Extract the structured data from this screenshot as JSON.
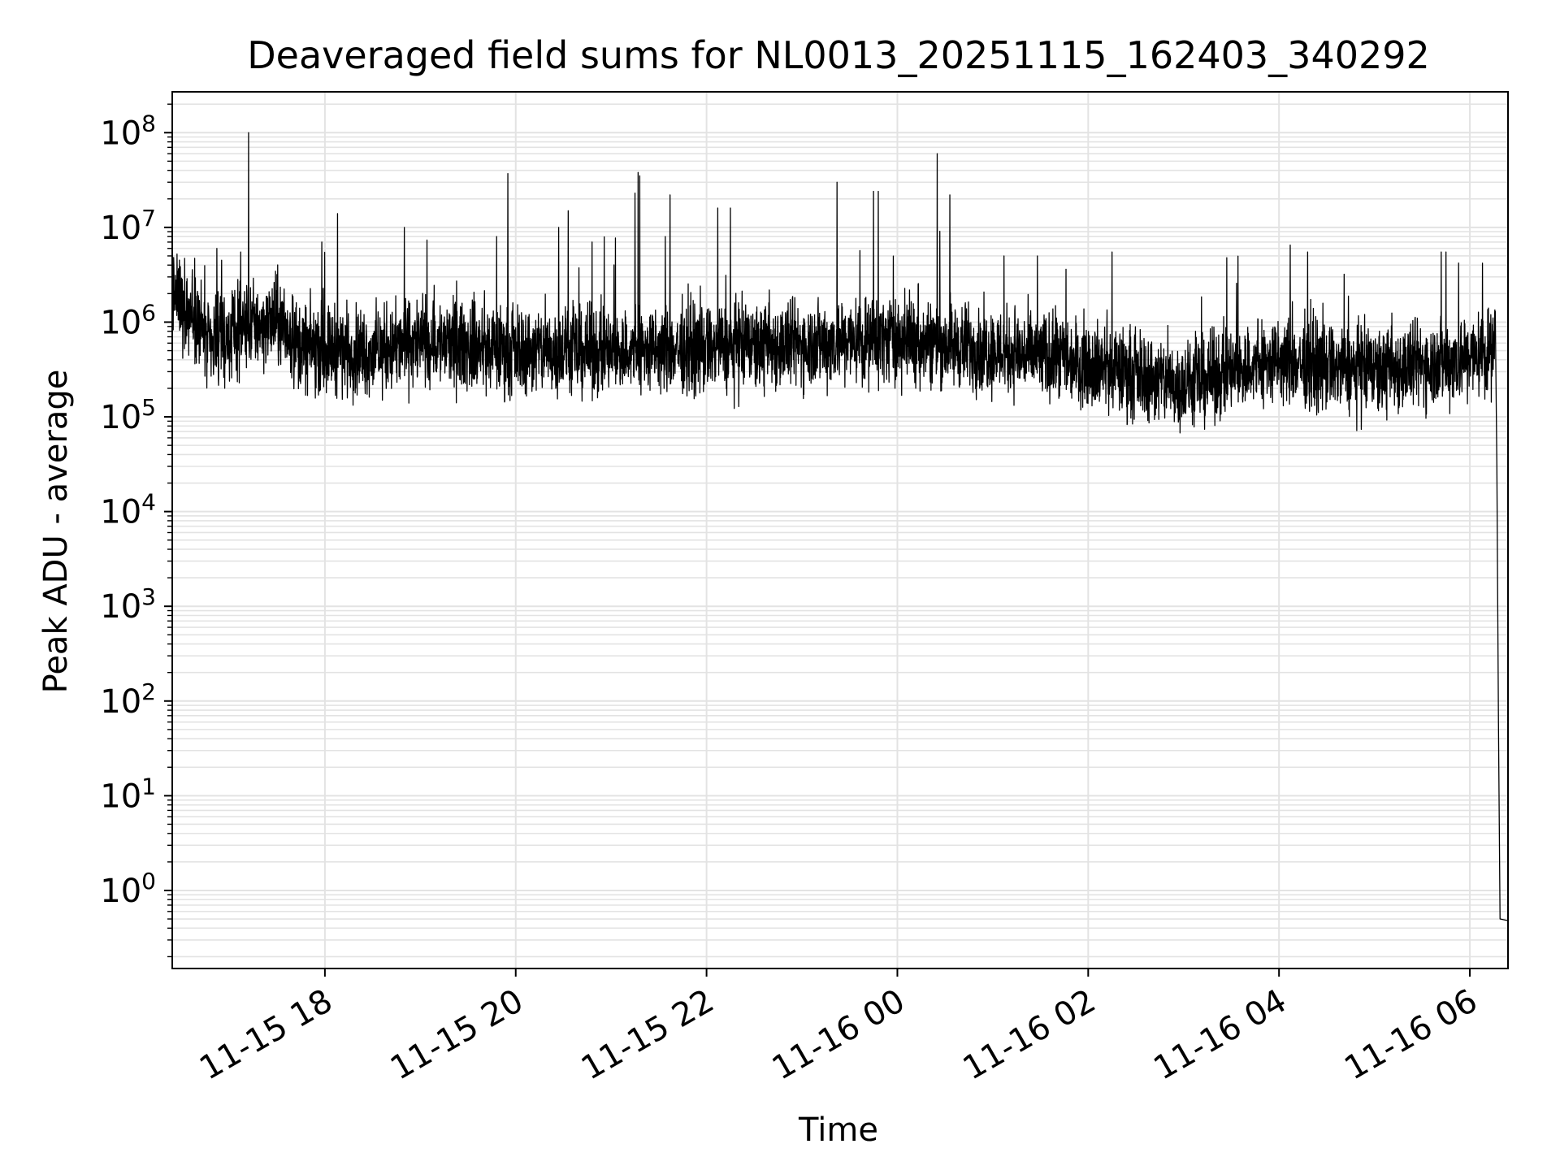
{
  "chart_data": {
    "type": "line",
    "title": "Deaveraged field sums for NL0013_20251115_162403_340292",
    "xlabel": "Time",
    "ylabel": "Peak ADU - average",
    "y_scale": "log",
    "ylim": [
      0.15,
      270000000.0
    ],
    "xlim": [
      "2025-11-15 16:24",
      "2025-11-16 06:24"
    ],
    "grid": true,
    "line_color": "#000000",
    "x_ticks": [
      {
        "t": "2025-11-15 18:00",
        "label": "11-15 18"
      },
      {
        "t": "2025-11-15 20:00",
        "label": "11-15 20"
      },
      {
        "t": "2025-11-15 22:00",
        "label": "11-15 22"
      },
      {
        "t": "2025-11-16 00:00",
        "label": "11-16 00"
      },
      {
        "t": "2025-11-16 02:00",
        "label": "11-16 02"
      },
      {
        "t": "2025-11-16 04:00",
        "label": "11-16 04"
      },
      {
        "t": "2025-11-16 06:00",
        "label": "11-16 06"
      }
    ],
    "y_ticks": [
      {
        "v": 1,
        "base": "10",
        "exp": "0"
      },
      {
        "v": 10,
        "base": "10",
        "exp": "1"
      },
      {
        "v": 100,
        "base": "10",
        "exp": "2"
      },
      {
        "v": 1000,
        "base": "10",
        "exp": "3"
      },
      {
        "v": 10000,
        "base": "10",
        "exp": "4"
      },
      {
        "v": 100000,
        "base": "10",
        "exp": "5"
      },
      {
        "v": 1000000,
        "base": "10",
        "exp": "6"
      },
      {
        "v": 10000000,
        "base": "10",
        "exp": "7"
      },
      {
        "v": 100000000,
        "base": "10",
        "exp": "8"
      }
    ],
    "baseline": [
      {
        "t": "2025-11-15 16:24",
        "v": 2000000
      },
      {
        "t": "2025-11-15 16:40",
        "v": 1200000
      },
      {
        "t": "2025-11-15 16:47",
        "v": 500000
      },
      {
        "t": "2025-11-15 17:10",
        "v": 900000
      },
      {
        "t": "2025-11-15 17:30",
        "v": 1000000
      },
      {
        "t": "2025-11-15 17:45",
        "v": 550000
      },
      {
        "t": "2025-11-15 18:30",
        "v": 480000
      },
      {
        "t": "2025-11-15 19:00",
        "v": 620000
      },
      {
        "t": "2025-11-15 20:00",
        "v": 500000
      },
      {
        "t": "2025-11-15 21:00",
        "v": 480000
      },
      {
        "t": "2025-11-15 22:00",
        "v": 520000
      },
      {
        "t": "2025-11-15 23:00",
        "v": 580000
      },
      {
        "t": "2025-11-16 00:00",
        "v": 680000
      },
      {
        "t": "2025-11-16 01:00",
        "v": 500000
      },
      {
        "t": "2025-11-16 02:00",
        "v": 380000
      },
      {
        "t": "2025-11-16 02:30",
        "v": 280000
      },
      {
        "t": "2025-11-16 03:00",
        "v": 210000
      },
      {
        "t": "2025-11-16 03:30",
        "v": 300000
      },
      {
        "t": "2025-11-16 04:00",
        "v": 380000
      },
      {
        "t": "2025-11-16 05:00",
        "v": 300000
      },
      {
        "t": "2025-11-16 06:00",
        "v": 420000
      },
      {
        "t": "2025-11-16 06:15",
        "v": 520000
      }
    ],
    "spikes": [
      {
        "t": "2025-11-15 17:12",
        "v": 100000000
      },
      {
        "t": "2025-11-15 17:07",
        "v": 5500000
      },
      {
        "t": "2025-11-15 16:52",
        "v": 6000000
      },
      {
        "t": "2025-11-15 18:08",
        "v": 14000000
      },
      {
        "t": "2025-11-15 17:58",
        "v": 7000000
      },
      {
        "t": "2025-11-15 18:50",
        "v": 10000000
      },
      {
        "t": "2025-11-15 19:55",
        "v": 37000000
      },
      {
        "t": "2025-11-15 19:48",
        "v": 8000000
      },
      {
        "t": "2025-11-15 20:27",
        "v": 10000000
      },
      {
        "t": "2025-11-15 20:33",
        "v": 15000000
      },
      {
        "t": "2025-11-15 20:48",
        "v": 7000000
      },
      {
        "t": "2025-11-15 21:15",
        "v": 23000000
      },
      {
        "t": "2025-11-15 21:17",
        "v": 38000000
      },
      {
        "t": "2025-11-15 21:18",
        "v": 35000000
      },
      {
        "t": "2025-11-15 21:37",
        "v": 22000000
      },
      {
        "t": "2025-11-15 21:34",
        "v": 8000000
      },
      {
        "t": "2025-11-15 22:07",
        "v": 16000000
      },
      {
        "t": "2025-11-15 22:15",
        "v": 16000000
      },
      {
        "t": "2025-11-15 23:22",
        "v": 30000000
      },
      {
        "t": "2025-11-15 23:45",
        "v": 24000000
      },
      {
        "t": "2025-11-15 23:48",
        "v": 24000000
      },
      {
        "t": "2025-11-16 00:25",
        "v": 60000000
      },
      {
        "t": "2025-11-16 00:33",
        "v": 22000000
      },
      {
        "t": "2025-11-16 01:07",
        "v": 5000000
      },
      {
        "t": "2025-11-16 01:28",
        "v": 5000000
      },
      {
        "t": "2025-11-16 02:15",
        "v": 5500000
      },
      {
        "t": "2025-11-16 04:07",
        "v": 6500000
      },
      {
        "t": "2025-11-16 04:18",
        "v": 5500000
      },
      {
        "t": "2025-11-16 04:41",
        "v": 3200000
      },
      {
        "t": "2025-11-16 05:42",
        "v": 5500000
      },
      {
        "t": "2025-11-16 05:45",
        "v": 5500000
      },
      {
        "t": "2025-11-16 05:53",
        "v": 4200000
      },
      {
        "t": "2025-11-16 00:13",
        "v": 2500000
      },
      {
        "t": "2025-11-15 16:55",
        "v": 4500000
      }
    ],
    "tail": [
      {
        "t": "2025-11-16 06:16",
        "v": 1300000
      },
      {
        "t": "2025-11-16 06:17",
        "v": 30000
      },
      {
        "t": "2025-11-16 06:18",
        "v": 60
      },
      {
        "t": "2025-11-16 06:19",
        "v": 0.5
      },
      {
        "t": "2025-11-16 06:24",
        "v": 0.48
      }
    ]
  }
}
